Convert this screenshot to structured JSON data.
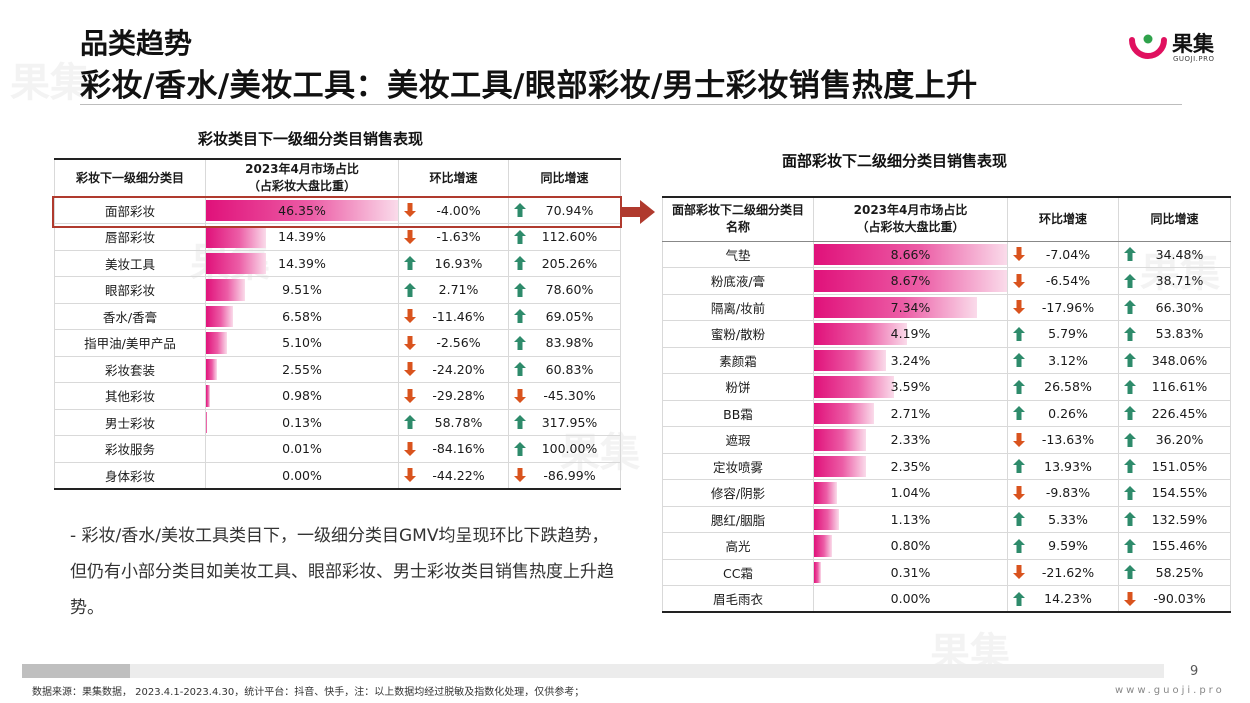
{
  "header": {
    "title_line1": "品类趋势",
    "title_line2": "彩妆/香水/美妆工具：美妆工具/眼部彩妆/男士彩妆销售热度上升"
  },
  "logo": {
    "text": "果集",
    "sub": "GUOJI.PRO"
  },
  "watermark": {
    "text": "果集"
  },
  "colors": {
    "bar_start": "#e0117a",
    "bar_end": "#fadbea",
    "up": "#2e8b6b",
    "down": "#d9531e",
    "highlight": "#b03a2e"
  },
  "left_table": {
    "title": "彩妆类目下一级细分类目销售表现",
    "headers": {
      "category": "彩妆下一级细分类目",
      "share_line1": "2023年4月市场占比",
      "share_line2": "（占彩妆大盘比重）",
      "mom": "环比增速",
      "yoy": "同比增速"
    },
    "rows": [
      {
        "name": "面部彩妆",
        "share": "46.35%",
        "share_num": 46.35,
        "mom": "-4.00%",
        "mom_dir": "down",
        "yoy": "70.94%",
        "yoy_dir": "up"
      },
      {
        "name": "唇部彩妆",
        "share": "14.39%",
        "share_num": 14.39,
        "mom": "-1.63%",
        "mom_dir": "down",
        "yoy": "112.60%",
        "yoy_dir": "up"
      },
      {
        "name": "美妆工具",
        "share": "14.39%",
        "share_num": 14.39,
        "mom": "16.93%",
        "mom_dir": "up",
        "yoy": "205.26%",
        "yoy_dir": "up"
      },
      {
        "name": "眼部彩妆",
        "share": "9.51%",
        "share_num": 9.51,
        "mom": "2.71%",
        "mom_dir": "up",
        "yoy": "78.60%",
        "yoy_dir": "up"
      },
      {
        "name": "香水/香膏",
        "share": "6.58%",
        "share_num": 6.58,
        "mom": "-11.46%",
        "mom_dir": "down",
        "yoy": "69.05%",
        "yoy_dir": "up"
      },
      {
        "name": "指甲油/美甲产品",
        "share": "5.10%",
        "share_num": 5.1,
        "mom": "-2.56%",
        "mom_dir": "down",
        "yoy": "83.98%",
        "yoy_dir": "up"
      },
      {
        "name": "彩妆套装",
        "share": "2.55%",
        "share_num": 2.55,
        "mom": "-24.20%",
        "mom_dir": "down",
        "yoy": "60.83%",
        "yoy_dir": "up"
      },
      {
        "name": "其他彩妆",
        "share": "0.98%",
        "share_num": 0.98,
        "mom": "-29.28%",
        "mom_dir": "down",
        "yoy": "-45.30%",
        "yoy_dir": "down"
      },
      {
        "name": "男士彩妆",
        "share": "0.13%",
        "share_num": 0.13,
        "mom": "58.78%",
        "mom_dir": "up",
        "yoy": "317.95%",
        "yoy_dir": "up"
      },
      {
        "name": "彩妆服务",
        "share": "0.01%",
        "share_num": 0.01,
        "mom": "-84.16%",
        "mom_dir": "down",
        "yoy": "100.00%",
        "yoy_dir": "up"
      },
      {
        "name": "身体彩妆",
        "share": "0.00%",
        "share_num": 0.0,
        "mom": "-44.22%",
        "mom_dir": "down",
        "yoy": "-86.99%",
        "yoy_dir": "down"
      }
    ]
  },
  "right_table": {
    "title": "面部彩妆下二级细分类目销售表现",
    "headers": {
      "category_line1": "面部彩妆下二级细分类目",
      "category_line2": "名称",
      "share_line1": "2023年4月市场占比",
      "share_line2": "（占彩妆大盘比重）",
      "mom": "环比增速",
      "yoy": "同比增速"
    },
    "rows": [
      {
        "name": "气垫",
        "share": "8.66%",
        "share_num": 8.66,
        "mom": "-7.04%",
        "mom_dir": "down",
        "yoy": "34.48%",
        "yoy_dir": "up"
      },
      {
        "name": "粉底液/膏",
        "share": "8.67%",
        "share_num": 8.67,
        "mom": "-6.54%",
        "mom_dir": "down",
        "yoy": "38.71%",
        "yoy_dir": "up"
      },
      {
        "name": "隔离/妆前",
        "share": "7.34%",
        "share_num": 7.34,
        "mom": "-17.96%",
        "mom_dir": "down",
        "yoy": "66.30%",
        "yoy_dir": "up"
      },
      {
        "name": "蜜粉/散粉",
        "share": "4.19%",
        "share_num": 4.19,
        "mom": "5.79%",
        "mom_dir": "up",
        "yoy": "53.83%",
        "yoy_dir": "up"
      },
      {
        "name": "素颜霜",
        "share": "3.24%",
        "share_num": 3.24,
        "mom": "3.12%",
        "mom_dir": "up",
        "yoy": "348.06%",
        "yoy_dir": "up"
      },
      {
        "name": "粉饼",
        "share": "3.59%",
        "share_num": 3.59,
        "mom": "26.58%",
        "mom_dir": "up",
        "yoy": "116.61%",
        "yoy_dir": "up"
      },
      {
        "name": "BB霜",
        "share": "2.71%",
        "share_num": 2.71,
        "mom": "0.26%",
        "mom_dir": "up",
        "yoy": "226.45%",
        "yoy_dir": "up"
      },
      {
        "name": "遮瑕",
        "share": "2.33%",
        "share_num": 2.33,
        "mom": "-13.63%",
        "mom_dir": "down",
        "yoy": "36.20%",
        "yoy_dir": "up"
      },
      {
        "name": "定妆喷雾",
        "share": "2.35%",
        "share_num": 2.35,
        "mom": "13.93%",
        "mom_dir": "up",
        "yoy": "151.05%",
        "yoy_dir": "up"
      },
      {
        "name": "修容/阴影",
        "share": "1.04%",
        "share_num": 1.04,
        "mom": "-9.83%",
        "mom_dir": "down",
        "yoy": "154.55%",
        "yoy_dir": "up"
      },
      {
        "name": "腮红/胭脂",
        "share": "1.13%",
        "share_num": 1.13,
        "mom": "5.33%",
        "mom_dir": "up",
        "yoy": "132.59%",
        "yoy_dir": "up"
      },
      {
        "name": "高光",
        "share": "0.80%",
        "share_num": 0.8,
        "mom": "9.59%",
        "mom_dir": "up",
        "yoy": "155.46%",
        "yoy_dir": "up"
      },
      {
        "name": "CC霜",
        "share": "0.31%",
        "share_num": 0.31,
        "mom": "-21.62%",
        "mom_dir": "down",
        "yoy": "58.25%",
        "yoy_dir": "up"
      },
      {
        "name": "眉毛雨衣",
        "share": "0.00%",
        "share_num": 0.0,
        "mom": "14.23%",
        "mom_dir": "up",
        "yoy": "-90.03%",
        "yoy_dir": "down"
      }
    ]
  },
  "note": {
    "text": "- 彩妆/香水/美妆工具类目下，一级细分类目GMV均呈现环比下跌趋势，但仍有小部分类目如美妆工具、眼部彩妆、男士彩妆类目销售热度上升趋势。"
  },
  "footer": {
    "page": "9",
    "source": "数据来源：果集数据， 2023.4.1-2023.4.30，统计平台：抖音、快手，注：以上数据均经过脱敏及指数化处理，仅供参考；",
    "site": "www.guoji.pro"
  }
}
